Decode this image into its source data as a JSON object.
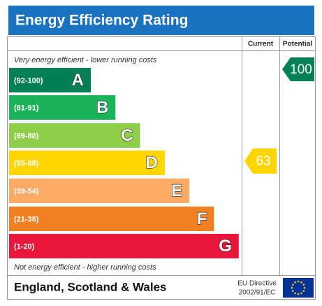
{
  "title": "Energy Efficiency Rating",
  "columns": [
    "Current",
    "Potential"
  ],
  "top_note": "Very energy efficient - lower running costs",
  "bottom_note": "Not energy efficient - higher running costs",
  "bands": [
    {
      "range": "(92-100)",
      "letter": "A",
      "color": "#008054"
    },
    {
      "range": "(81-91)",
      "letter": "B",
      "color": "#19b459"
    },
    {
      "range": "(69-80)",
      "letter": "C",
      "color": "#8dce46"
    },
    {
      "range": "(55-68)",
      "letter": "D",
      "color": "#ffd500"
    },
    {
      "range": "(39-54)",
      "letter": "E",
      "color": "#fcaa65"
    },
    {
      "range": "(21-38)",
      "letter": "F",
      "color": "#ef8023"
    },
    {
      "range": "(1-20)",
      "letter": "G",
      "color": "#e9153b"
    }
  ],
  "current": {
    "value": 63,
    "color": "#ffd500"
  },
  "potential": {
    "value": 100,
    "color": "#008054"
  },
  "footer": {
    "region": "England, Scotland & Wales",
    "directive": [
      "EU Directive",
      "2002/91/EC"
    ]
  }
}
